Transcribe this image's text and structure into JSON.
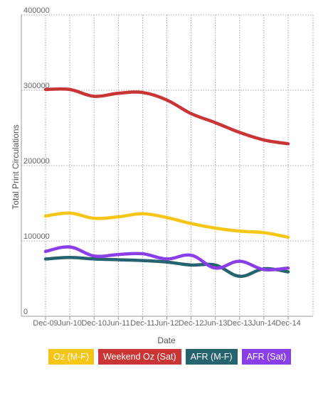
{
  "chart_data": {
    "type": "line",
    "title": "",
    "xlabel": "Date",
    "ylabel": "Total Print Circulations",
    "ylim": [
      0,
      400000
    ],
    "yticks": [
      0,
      100000,
      200000,
      300000,
      400000
    ],
    "ytick_labels": [
      "0",
      "100000",
      "200000",
      "300000",
      "400000"
    ],
    "categories": [
      "Dec-09",
      "Jun-10",
      "Dec-10",
      "Jun-11",
      "Dec-11",
      "Jun-12",
      "Dec-12",
      "Jun-13",
      "Dec-13",
      "Jun-14",
      "Dec-14"
    ],
    "grid": true,
    "legend_position": "bottom",
    "series": [
      {
        "name": "Oz (M-F)",
        "color": "#f5c518",
        "values": [
          133000,
          137000,
          130000,
          132000,
          136000,
          131000,
          123000,
          117000,
          113000,
          111000,
          105000
        ]
      },
      {
        "name": "Weekend Oz (Sat)",
        "color": "#c93434",
        "values": [
          301000,
          301000,
          292000,
          296000,
          297000,
          287000,
          269000,
          257000,
          244000,
          234000,
          229000
        ]
      },
      {
        "name": "AFR (M-F)",
        "color": "#25646e",
        "values": [
          76000,
          78000,
          76000,
          75000,
          74000,
          72000,
          68000,
          68000,
          53000,
          63000,
          59000
        ]
      },
      {
        "name": "AFR (Sat)",
        "color": "#8a3ee8",
        "values": [
          86000,
          92000,
          80000,
          82000,
          83000,
          76000,
          81000,
          64000,
          73000,
          62000,
          64000
        ]
      }
    ]
  }
}
